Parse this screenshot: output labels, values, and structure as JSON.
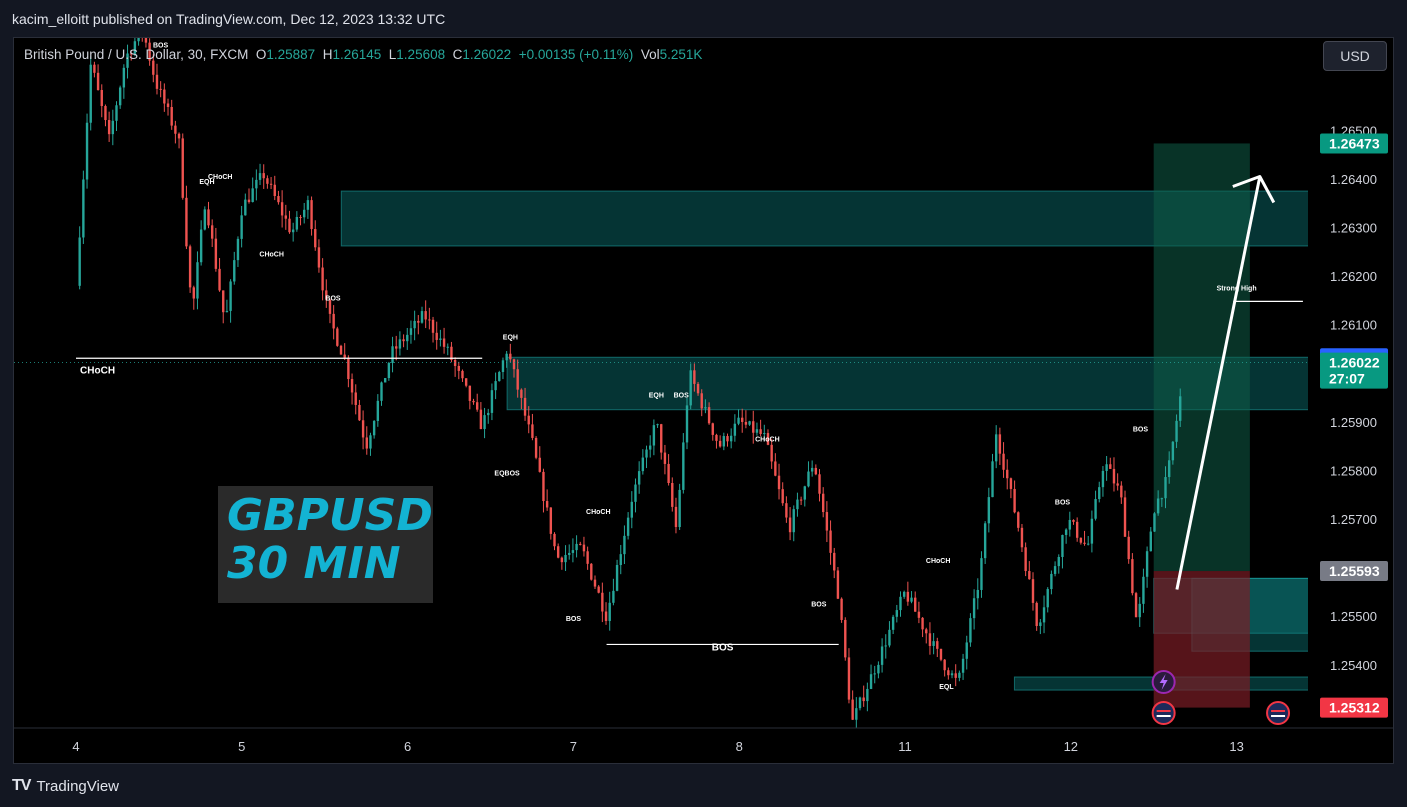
{
  "header": {
    "publisher": "kacim_elloitt published on TradingView.com, Dec 12, 2023 13:32 UTC"
  },
  "symbol": {
    "name": "British Pound / U.S. Dollar, 30, FXCM",
    "o_label": "O",
    "o": "1.25887",
    "h_label": "H",
    "h": "1.26145",
    "l_label": "L",
    "l": "1.25608",
    "c_label": "C",
    "c": "1.26022",
    "change": "+0.00135 (+0.11%)",
    "vol_label": "Vol",
    "vol": "5.251K"
  },
  "currency_button": "USD",
  "banner": {
    "title": "GBPUSD",
    "subtitle": "30 MIN"
  },
  "footer": {
    "logo_mark": "TV",
    "logo_text": "TradingView"
  },
  "colors": {
    "up": "#26a69a",
    "down": "#ef5350",
    "zone": "#0e8a8a",
    "tp_zone": "#0f5c47",
    "sl_zone": "#7a1c25"
  },
  "chart_data": {
    "type": "candlestick",
    "y_ticks": [
      "1.26500",
      "1.26400",
      "1.26300",
      "1.26200",
      "1.26100",
      "1.25900",
      "1.25800",
      "1.25700",
      "1.25500",
      "1.25400"
    ],
    "x_ticks": [
      "4",
      "5",
      "6",
      "7",
      "8",
      "11",
      "12",
      "13"
    ],
    "ylim": [
      1.2527,
      1.2669
    ],
    "price_labels": [
      {
        "text": "1.26473",
        "value": 1.26473,
        "color": "#089981"
      },
      {
        "text": "1.26031",
        "value": 1.26031,
        "color": "#2962ff"
      },
      {
        "text": "1.26022",
        "sub": "27:07",
        "value": 1.26022,
        "color": "#089981"
      },
      {
        "text": "1.25593",
        "value": 1.25593,
        "color": "#787b86"
      },
      {
        "text": "1.25312",
        "value": 1.25312,
        "color": "#f23645"
      }
    ],
    "path": [
      [
        0,
        1.2618
      ],
      [
        0.09,
        1.2664
      ],
      [
        0.2,
        1.2648
      ],
      [
        0.3,
        1.2665
      ],
      [
        0.4,
        1.2671
      ],
      [
        0.48,
        1.266
      ],
      [
        0.62,
        1.2648
      ],
      [
        0.7,
        1.2612
      ],
      [
        0.78,
        1.2636
      ],
      [
        0.9,
        1.261
      ],
      [
        1.0,
        1.2634
      ],
      [
        1.13,
        1.2641
      ],
      [
        1.3,
        1.2629
      ],
      [
        1.4,
        1.2635
      ],
      [
        1.52,
        1.2612
      ],
      [
        1.62,
        1.2603
      ],
      [
        1.75,
        1.2585
      ],
      [
        1.9,
        1.2604
      ],
      [
        2.1,
        1.2612
      ],
      [
        2.25,
        1.2604
      ],
      [
        2.45,
        1.2589
      ],
      [
        2.6,
        1.2605
      ],
      [
        2.75,
        1.2586
      ],
      [
        2.9,
        1.2562
      ],
      [
        3.05,
        1.2564
      ],
      [
        3.2,
        1.255
      ],
      [
        3.35,
        1.2574
      ],
      [
        3.5,
        1.259
      ],
      [
        3.62,
        1.2568
      ],
      [
        3.7,
        1.26
      ],
      [
        3.88,
        1.2585
      ],
      [
        4.0,
        1.259
      ],
      [
        4.15,
        1.2587
      ],
      [
        4.3,
        1.2568
      ],
      [
        4.45,
        1.2582
      ],
      [
        4.6,
        1.2554
      ],
      [
        4.68,
        1.2528
      ],
      [
        4.85,
        1.2542
      ],
      [
        5.0,
        1.2555
      ],
      [
        5.2,
        1.2542
      ],
      [
        5.32,
        1.2536
      ],
      [
        5.45,
        1.2558
      ],
      [
        5.55,
        1.2588
      ],
      [
        5.68,
        1.2569
      ],
      [
        5.8,
        1.2548
      ],
      [
        5.98,
        1.257
      ],
      [
        6.1,
        1.2564
      ],
      [
        6.2,
        1.2582
      ],
      [
        6.3,
        1.2575
      ],
      [
        6.4,
        1.2548
      ],
      [
        6.5,
        1.2572
      ],
      [
        6.58,
        1.2578
      ],
      [
        6.66,
        1.2595
      ]
    ],
    "zones": [
      {
        "from": 1.6,
        "to": 7.45,
        "top": 1.26375,
        "bottom": 1.26262
      },
      {
        "from": 2.6,
        "to": 7.45,
        "top": 1.26033,
        "bottom": 1.25925
      },
      {
        "from": 6.5,
        "to": 7.45,
        "top": 1.25578,
        "bottom": 1.25465
      },
      {
        "from": 6.73,
        "to": 7.45,
        "top": 1.25578,
        "bottom": 1.25428
      },
      {
        "from": 5.66,
        "to": 7.45,
        "top": 1.25375,
        "bottom": 1.25348
      }
    ],
    "position": {
      "from": 6.5,
      "to": 7.08,
      "target": 1.26473,
      "entry": 1.25593,
      "stop": 1.25312
    },
    "levels": [
      {
        "x1": 0,
        "x2": 2.45,
        "y": 1.26031,
        "color": "#ffffff"
      },
      {
        "x1": 3.2,
        "x2": 4.6,
        "y": 1.25442,
        "color": "#ffffff"
      },
      {
        "x1": 6.98,
        "x2": 7.4,
        "y": 1.26148,
        "color": "#ffffff"
      }
    ],
    "annotations": [
      {
        "text": "BOS",
        "x": 0.51,
        "y": 1.2667,
        "size": 7
      },
      {
        "text": "CHoCH",
        "x": 0.87,
        "y": 1.264,
        "size": 7
      },
      {
        "text": "EQH",
        "x": 0.79,
        "y": 1.2639,
        "size": 7
      },
      {
        "text": "CHoCH",
        "x": 1.18,
        "y": 1.2624,
        "size": 7
      },
      {
        "text": "BOS",
        "x": 1.55,
        "y": 1.2615,
        "size": 7
      },
      {
        "text": "CHoCH",
        "x": 0.13,
        "y": 1.26,
        "size": 10
      },
      {
        "text": "EQH",
        "x": 2.62,
        "y": 1.2607,
        "size": 7
      },
      {
        "text": "EQH",
        "x": 3.5,
        "y": 1.2595,
        "size": 7
      },
      {
        "text": "BOS",
        "x": 3.65,
        "y": 1.2595,
        "size": 7
      },
      {
        "text": "EQBOS",
        "x": 2.6,
        "y": 1.2579,
        "size": 7
      },
      {
        "text": "CHoCH",
        "x": 4.17,
        "y": 1.2586,
        "size": 7
      },
      {
        "text": "CHoCH",
        "x": 3.15,
        "y": 1.2571,
        "size": 7
      },
      {
        "text": "BOS",
        "x": 3.0,
        "y": 1.2549,
        "size": 7
      },
      {
        "text": "BOS",
        "x": 4.48,
        "y": 1.2552,
        "size": 7
      },
      {
        "text": "BOS",
        "x": 3.9,
        "y": 1.2543,
        "size": 10
      },
      {
        "text": "CHoCH",
        "x": 5.2,
        "y": 1.2561,
        "size": 7
      },
      {
        "text": "EQL",
        "x": 5.25,
        "y": 1.2535,
        "size": 7
      },
      {
        "text": "BOS",
        "x": 5.95,
        "y": 1.2573,
        "size": 7
      },
      {
        "text": "BOS",
        "x": 6.42,
        "y": 1.2588,
        "size": 7
      },
      {
        "text": "Strong High",
        "x": 7.0,
        "y": 1.2617,
        "size": 7
      }
    ]
  }
}
